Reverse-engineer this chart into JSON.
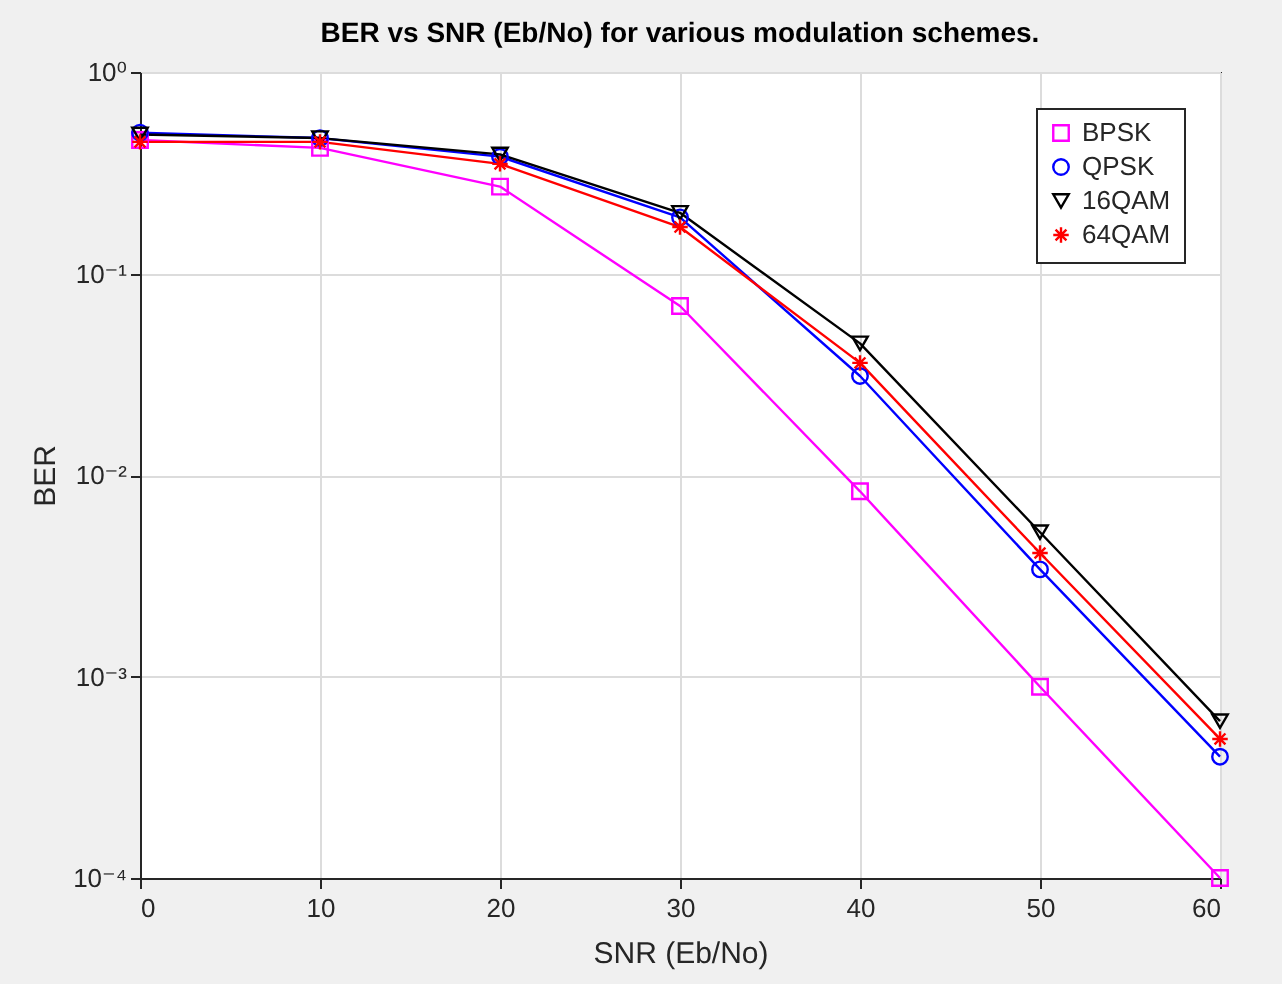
{
  "chart_data": {
    "type": "line",
    "title": "BER vs SNR (Eb/No) for various modulation schemes.",
    "xlabel": "SNR (Eb/No)",
    "ylabel": "BER",
    "x": [
      0,
      10,
      20,
      30,
      40,
      50,
      60
    ],
    "series": [
      {
        "name": "BPSK",
        "color": "#ff00ff",
        "marker": "square",
        "values": [
          0.46,
          0.42,
          0.27,
          0.069,
          0.0083,
          0.00089,
          0.0001
        ]
      },
      {
        "name": "QPSK",
        "color": "#0000ff",
        "marker": "circle",
        "values": [
          0.5,
          0.47,
          0.38,
          0.19,
          0.031,
          0.0034,
          0.0004
        ]
      },
      {
        "name": "16QAM",
        "color": "#000000",
        "marker": "triangle",
        "values": [
          0.49,
          0.47,
          0.39,
          0.2,
          0.045,
          0.0052,
          0.0006
        ]
      },
      {
        "name": "64QAM",
        "color": "#ff0000",
        "marker": "cross",
        "values": [
          0.45,
          0.45,
          0.35,
          0.17,
          0.036,
          0.0041,
          0.00049
        ]
      }
    ],
    "log": "y",
    "xlim": [
      0,
      60
    ],
    "xticks": [
      0,
      10,
      20,
      30,
      40,
      50,
      60
    ],
    "ylim": [
      0.0001,
      1
    ],
    "yticks": [
      {
        "value": 0.0001,
        "label": "10⁻⁴"
      },
      {
        "value": 0.001,
        "label": "10⁻³"
      },
      {
        "value": 0.01,
        "label": "10⁻²"
      },
      {
        "value": 0.1,
        "label": "10⁻¹"
      },
      {
        "value": 1,
        "label": "10⁰"
      }
    ],
    "grid": true,
    "legend": "top right",
    "line_style": "solid"
  }
}
